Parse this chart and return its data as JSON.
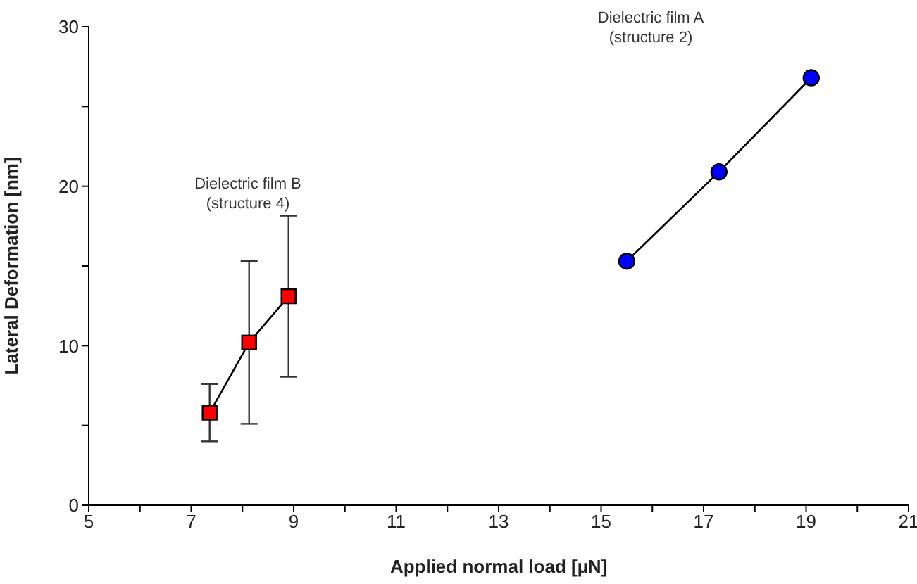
{
  "chart_data": {
    "type": "line",
    "xlabel": "Applied normal load [µN]",
    "ylabel": "Lateral Deformation [nm]",
    "xlim": [
      5,
      21
    ],
    "xticks": [
      5,
      {
        "value": 6,
        "label": null
      },
      7,
      {
        "value": 8,
        "label": null
      },
      9,
      {
        "value": 10,
        "label": null
      },
      11,
      {
        "value": 12,
        "label": null
      },
      13,
      {
        "value": 14,
        "label": null
      },
      15,
      {
        "value": 16,
        "label": null
      },
      17,
      {
        "value": 18,
        "label": null
      },
      19,
      {
        "value": 20,
        "label": null
      },
      21
    ],
    "ylim": [
      0,
      30
    ],
    "yticks": [
      0,
      {
        "value": 5,
        "label": null
      },
      10,
      {
        "value": 15,
        "label": null
      },
      20,
      {
        "value": 25,
        "label": null
      },
      30
    ],
    "grid": false,
    "legend": false,
    "line_style": "solid",
    "series": [
      {
        "color": "#ff0000",
        "marker": "square",
        "x": [
          7.36,
          8.13,
          8.9
        ],
        "values": [
          5.8,
          10.2,
          13.1
        ],
        "errors": [
          1.8,
          5.1,
          5.05
        ]
      },
      {
        "color": "#0000ff",
        "marker": "circle",
        "x": [
          15.5,
          17.3,
          19.1
        ],
        "values": [
          15.3,
          20.9,
          26.8
        ]
      }
    ],
    "annotations": [
      "Dielectric film A\n(structure 2)",
      "Dielectric film B\n(structure 4)"
    ]
  }
}
